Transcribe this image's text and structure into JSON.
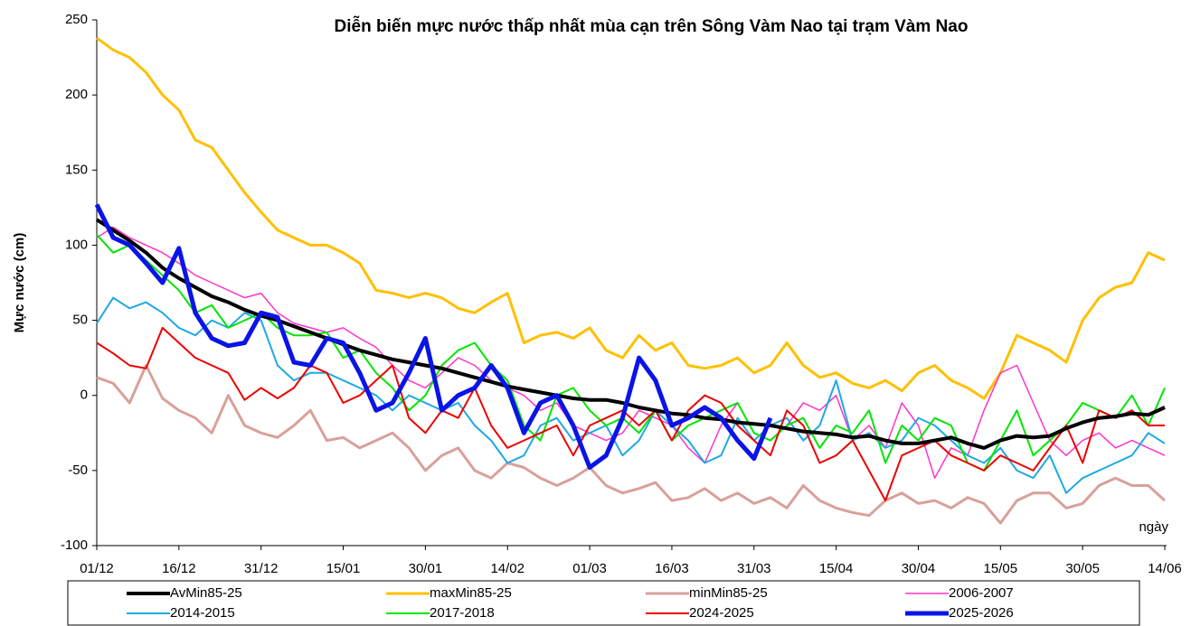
{
  "chart_data": {
    "type": "line",
    "title": "Diễn biến mực nước thấp nhất mùa cạn trên Sông Vàm Nao tại trạm Vàm Nao",
    "y_label": "Mực nước (cm)",
    "x_label": "ngày",
    "x": [
      0,
      3,
      6,
      9,
      12,
      15,
      18,
      21,
      24,
      27,
      30,
      33,
      36,
      39,
      42,
      45,
      48,
      51,
      54,
      57,
      60,
      63,
      66,
      69,
      72,
      75,
      78,
      81,
      84,
      87,
      90,
      93,
      96,
      99,
      102,
      105,
      108,
      111,
      114,
      117,
      120,
      123,
      126,
      129,
      132,
      135,
      138,
      141,
      144,
      147,
      150,
      153,
      156,
      159,
      162,
      165,
      168,
      171,
      174,
      177,
      180,
      183,
      186,
      189,
      192,
      195
    ],
    "xlim": [
      0,
      196
    ],
    "xticks": [
      {
        "value": 0,
        "label": "01/12"
      },
      {
        "value": 15,
        "label": "16/12"
      },
      {
        "value": 30,
        "label": "31/12"
      },
      {
        "value": 45,
        "label": "15/01"
      },
      {
        "value": 60,
        "label": "30/01"
      },
      {
        "value": 75,
        "label": "14/02"
      },
      {
        "value": 90,
        "label": "01/03"
      },
      {
        "value": 105,
        "label": "16/03"
      },
      {
        "value": 120,
        "label": "31/03"
      },
      {
        "value": 135,
        "label": "15/04"
      },
      {
        "value": 150,
        "label": "30/04"
      },
      {
        "value": 165,
        "label": "15/05"
      },
      {
        "value": 180,
        "label": "30/05"
      },
      {
        "value": 195,
        "label": "14/06"
      }
    ],
    "ylim": [
      -100,
      250
    ],
    "yticks": [
      -100,
      -50,
      0,
      50,
      100,
      150,
      200,
      250
    ],
    "grid": false,
    "legend": "bottom",
    "series": [
      {
        "name": "AvMin85-25",
        "color": "#000000",
        "width": 4,
        "values": [
          117,
          110,
          103,
          95,
          85,
          78,
          72,
          66,
          62,
          57,
          53,
          50,
          46,
          42,
          38,
          34,
          30,
          27,
          24,
          22,
          20,
          18,
          15,
          12,
          9,
          6,
          4,
          2,
          0,
          -2,
          -3,
          -3,
          -5,
          -8,
          -10,
          -12,
          -13,
          -15,
          -16,
          -18,
          -19,
          -20,
          -22,
          -24,
          -25,
          -26,
          -28,
          -27,
          -30,
          -32,
          -32,
          -30,
          -28,
          -32,
          -35,
          -30,
          -27,
          -28,
          -27,
          -22,
          -18,
          -15,
          -14,
          -12,
          -13,
          -8
        ]
      },
      {
        "name": "maxMin85-25",
        "color": "#ffc000",
        "width": 3,
        "values": [
          238,
          230,
          225,
          215,
          200,
          190,
          170,
          165,
          150,
          135,
          122,
          110,
          105,
          100,
          100,
          95,
          88,
          70,
          68,
          65,
          68,
          65,
          58,
          55,
          62,
          68,
          35,
          40,
          42,
          38,
          45,
          30,
          25,
          40,
          30,
          35,
          20,
          18,
          20,
          25,
          15,
          20,
          35,
          20,
          12,
          15,
          8,
          5,
          10,
          3,
          15,
          20,
          10,
          5,
          -2,
          15,
          40,
          35,
          30,
          22,
          50,
          65,
          72,
          75,
          95,
          90
        ]
      },
      {
        "name": "minMin85-25",
        "color": "#d9a09a",
        "width": 3,
        "values": [
          12,
          8,
          -5,
          20,
          -2,
          -10,
          -15,
          -25,
          0,
          -20,
          -25,
          -28,
          -20,
          -10,
          -30,
          -28,
          -35,
          -30,
          -25,
          -35,
          -50,
          -40,
          -35,
          -50,
          -55,
          -45,
          -48,
          -55,
          -60,
          -55,
          -48,
          -60,
          -65,
          -62,
          -58,
          -70,
          -68,
          -62,
          -70,
          -65,
          -72,
          -68,
          -75,
          -60,
          -70,
          -75,
          -78,
          -80,
          -70,
          -65,
          -72,
          -70,
          -75,
          -68,
          -72,
          -85,
          -70,
          -65,
          -65,
          -75,
          -72,
          -60,
          -55,
          -60,
          -60,
          -70
        ]
      },
      {
        "name": "2006-2007",
        "color": "#ff33cc",
        "width": 1.5,
        "values": [
          105,
          112,
          105,
          100,
          95,
          88,
          80,
          75,
          70,
          65,
          68,
          55,
          48,
          45,
          42,
          45,
          38,
          32,
          20,
          10,
          5,
          15,
          25,
          20,
          10,
          5,
          0,
          -10,
          -5,
          -20,
          -25,
          -30,
          -25,
          -10,
          -15,
          -20,
          -35,
          -45,
          -20,
          -5,
          -25,
          -30,
          -20,
          -5,
          -10,
          0,
          -30,
          -20,
          -35,
          -5,
          -20,
          -55,
          -35,
          -40,
          -10,
          15,
          20,
          -5,
          -30,
          -40,
          -30,
          -25,
          -35,
          -30,
          -35,
          -40
        ]
      },
      {
        "name": "2014-2015",
        "color": "#1fa9e1",
        "width": 2,
        "values": [
          48,
          65,
          58,
          62,
          55,
          45,
          40,
          50,
          45,
          55,
          50,
          20,
          10,
          15,
          15,
          10,
          5,
          0,
          -10,
          0,
          -5,
          -10,
          -5,
          -20,
          -30,
          -45,
          -40,
          -20,
          -15,
          -30,
          -25,
          -20,
          -40,
          -30,
          -10,
          -20,
          -30,
          -45,
          -40,
          -15,
          -30,
          -20,
          -15,
          -30,
          -20,
          10,
          -30,
          -25,
          -35,
          -30,
          -15,
          -20,
          -30,
          -40,
          -45,
          -35,
          -50,
          -55,
          -40,
          -65,
          -55,
          -50,
          -45,
          -40,
          -25,
          -32
        ]
      },
      {
        "name": "2017-2018",
        "color": "#00e600",
        "width": 2,
        "values": [
          107,
          95,
          100,
          90,
          80,
          70,
          55,
          60,
          45,
          50,
          55,
          45,
          40,
          40,
          42,
          25,
          30,
          15,
          5,
          -10,
          0,
          20,
          30,
          35,
          20,
          10,
          -20,
          -30,
          0,
          5,
          -10,
          -20,
          -15,
          -25,
          -10,
          -30,
          -20,
          -15,
          -10,
          -5,
          -25,
          -30,
          -20,
          -15,
          -35,
          -20,
          -25,
          -10,
          -45,
          -20,
          -30,
          -15,
          -20,
          -45,
          -50,
          -30,
          -10,
          -40,
          -30,
          -20,
          -5,
          -10,
          -15,
          0,
          -20,
          5
        ]
      },
      {
        "name": "2024-2025",
        "color": "#ee0000",
        "width": 2,
        "values": [
          35,
          28,
          20,
          18,
          45,
          35,
          25,
          20,
          15,
          -3,
          5,
          -2,
          5,
          20,
          15,
          -5,
          0,
          10,
          20,
          -15,
          -25,
          -10,
          -15,
          5,
          -20,
          -35,
          -30,
          -25,
          -20,
          -40,
          -20,
          -15,
          -10,
          -20,
          -10,
          -30,
          -10,
          0,
          -5,
          -20,
          -30,
          -40,
          -10,
          -20,
          -45,
          -40,
          -30,
          -50,
          -70,
          -40,
          -35,
          -30,
          -40,
          -45,
          -50,
          -40,
          -45,
          -50,
          -35,
          -20,
          -45,
          -10,
          -15,
          -10,
          -20,
          -20
        ]
      },
      {
        "name": "2025-2026",
        "color": "#0a14e6",
        "width": 5,
        "values": [
          127,
          105,
          100,
          88,
          75,
          98,
          55,
          38,
          33,
          35,
          55,
          52,
          22,
          20,
          38,
          35,
          15,
          -10,
          -5,
          15,
          38,
          -10,
          0,
          5,
          20,
          5,
          -25,
          -5,
          0,
          -20,
          -48,
          -40,
          -15,
          25,
          10,
          -20,
          -15,
          -8,
          -15,
          -30,
          -42,
          -15,
          null,
          null,
          null,
          null,
          null,
          null,
          null,
          null,
          null,
          null,
          null,
          null,
          null,
          null,
          null,
          null,
          null,
          null,
          null,
          null,
          null,
          null,
          null,
          null
        ]
      }
    ]
  }
}
